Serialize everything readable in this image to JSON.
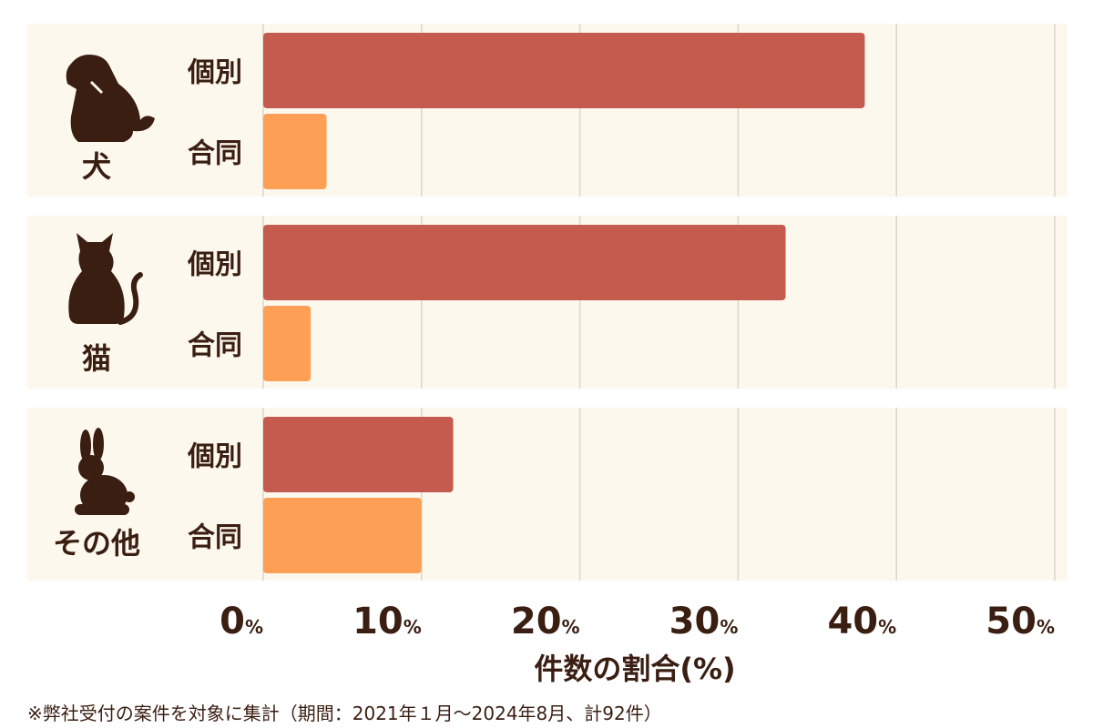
{
  "chart_data": {
    "type": "bar",
    "orientation": "horizontal",
    "groups": [
      {
        "label": "犬",
        "icon": "dog-icon",
        "bars": [
          {
            "name": "個別",
            "value": 38
          },
          {
            "name": "合同",
            "value": 4
          }
        ]
      },
      {
        "label": "猫",
        "icon": "cat-icon",
        "bars": [
          {
            "name": "個別",
            "value": 33
          },
          {
            "name": "合同",
            "value": 3
          }
        ]
      },
      {
        "label": "その他",
        "icon": "rabbit-icon",
        "bars": [
          {
            "name": "個別",
            "value": 12
          },
          {
            "name": "合同",
            "value": 10
          }
        ]
      }
    ],
    "xlim": [
      0,
      50
    ],
    "xticks": [
      0,
      10,
      20,
      30,
      40,
      50
    ],
    "tick_unit": "%",
    "xlabel": "件数の割合(%)",
    "grid": true,
    "colors": {
      "個別": "#c55b4e",
      "合同": "#fd9f55",
      "panel": "#fdf8ed",
      "grid": "#ddd6c6",
      "text": "#3a1e12"
    }
  },
  "footnote": "※弊社受付の案件を対象に集計（期間：2021年１月〜2024年8月、計92件）"
}
